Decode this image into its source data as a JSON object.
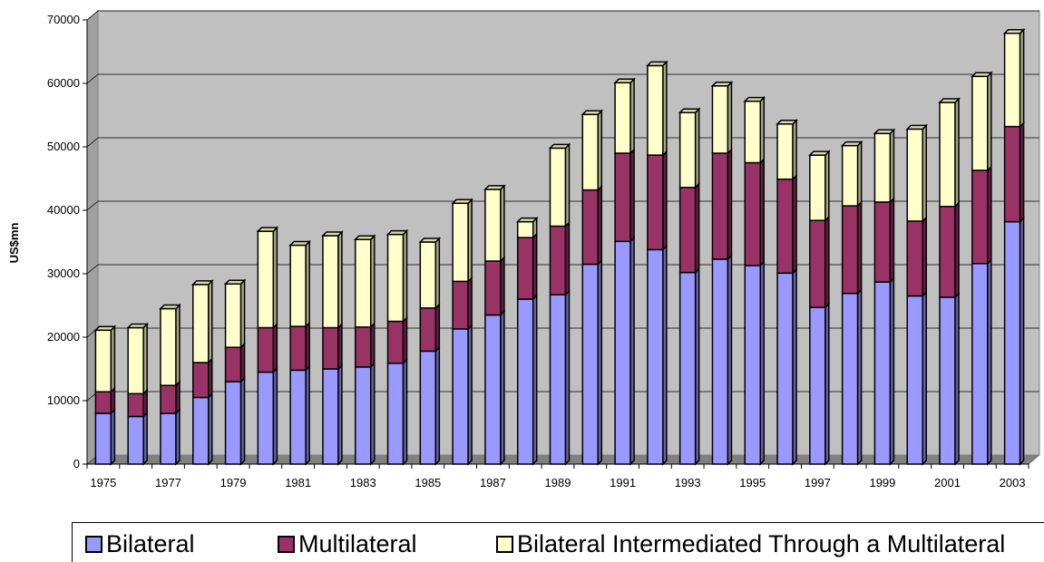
{
  "chart_data": {
    "type": "bar",
    "stacked": true,
    "three_d": true,
    "title": "",
    "xlabel": "",
    "ylabel": "US$mn",
    "ylim": [
      0,
      70000
    ],
    "yticks": [
      0,
      10000,
      20000,
      30000,
      40000,
      50000,
      60000,
      70000
    ],
    "xtick_labels": [
      "1975",
      "1977",
      "1979",
      "1981",
      "1983",
      "1985",
      "1987",
      "1989",
      "1991",
      "1993",
      "1995",
      "1997",
      "1999",
      "2001",
      "2003"
    ],
    "grid": true,
    "legend_position": "bottom",
    "categories": [
      "1975",
      "1976",
      "1977",
      "1978",
      "1979",
      "1980",
      "1981",
      "1982",
      "1983",
      "1984",
      "1985",
      "1986",
      "1987",
      "1988",
      "1989",
      "1990",
      "1991",
      "1992",
      "1993",
      "1994",
      "1995",
      "1996",
      "1997",
      "1998",
      "1999",
      "2000",
      "2001",
      "2002",
      "2003"
    ],
    "series": [
      {
        "name": "Bilateral",
        "color": "#9999ff",
        "values": [
          8000,
          7500,
          8000,
          10500,
          13000,
          14500,
          14800,
          15000,
          15300,
          15900,
          17800,
          21300,
          23500,
          26000,
          26700,
          31500,
          35100,
          33800,
          30200,
          32300,
          31300,
          30100,
          24700,
          26900,
          28700,
          26500,
          26300,
          31600,
          38200
        ]
      },
      {
        "name": "Multilateral",
        "color": "#993366",
        "values": [
          3400,
          3600,
          4400,
          5500,
          5400,
          7000,
          6900,
          6500,
          6300,
          6600,
          6800,
          7500,
          8500,
          9700,
          10800,
          11700,
          13900,
          14900,
          13400,
          16700,
          16200,
          14800,
          13700,
          13800,
          12600,
          11800,
          14300,
          14700,
          15000
        ]
      },
      {
        "name": "Bilateral Intermediated Through a Multilateral",
        "color": "#ffffcc",
        "values": [
          9700,
          10400,
          12100,
          12300,
          10000,
          15200,
          12800,
          14500,
          13800,
          13700,
          10400,
          12300,
          11300,
          2500,
          12300,
          11900,
          11100,
          14100,
          11800,
          10600,
          9700,
          8700,
          10300,
          9500,
          10800,
          14500,
          16400,
          14800,
          14700
        ]
      }
    ]
  },
  "legend": {
    "bilateral": "Bilateral",
    "multilateral": "Multilateral",
    "intermediated": "Bilateral Intermediated Through a Multilateral"
  }
}
